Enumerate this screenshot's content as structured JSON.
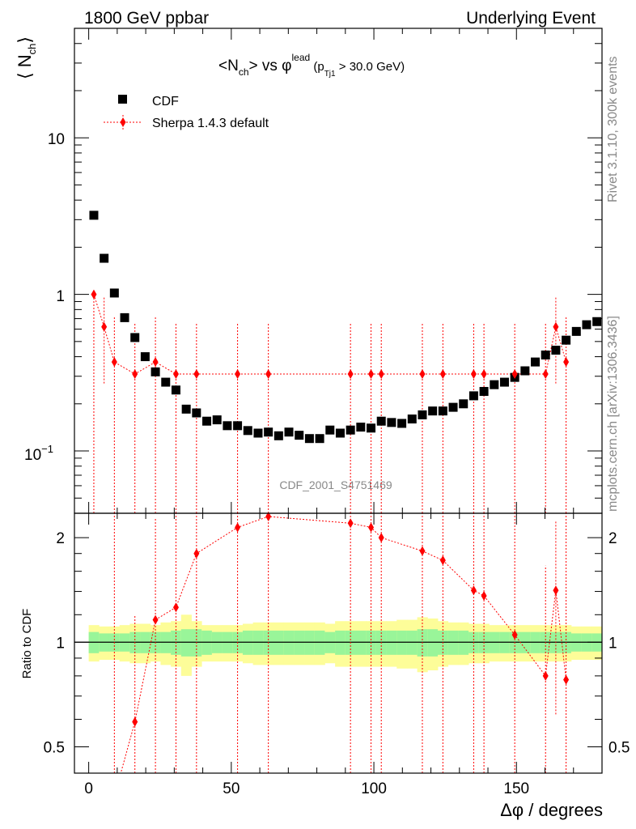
{
  "header": {
    "left": "1800 GeV ppbar",
    "right": "Underlying Event"
  },
  "side": {
    "rivet": "Rivet 3.1.10,  300k events",
    "mcplots": "mcplots.cern.ch [arXiv:1306.3436]"
  },
  "watermark": "CDF_2001_S4751469",
  "colors": {
    "data": "#000000",
    "mc": "#ff0000",
    "band_inner": "#99f599",
    "band_outer": "#fdfd99"
  },
  "chart_data": [
    {
      "type": "scatter",
      "title": "<Nch> vs φlead (pTj1 > 30.0 GeV)",
      "title_parts": {
        "a": "<N",
        "a_sub": "ch",
        "b": "> vs ",
        "phi": "φ",
        "phi_sup": "lead",
        "c": " (p",
        "c_sub": "Tj1",
        "d": " > 30.0 GeV)"
      },
      "ylabel": "⟨ N",
      "ylabel_sub": "ch",
      "ylabel_close": "⟩",
      "yscale": "log",
      "ylim": [
        0.04,
        50
      ],
      "xlim": [
        -5,
        180
      ],
      "ytick_labels": {
        "t01": "10",
        "t01_exp": "−1",
        "t1": "1",
        "t10": "10"
      },
      "legend_position": "top-left",
      "legend": {
        "data": "CDF",
        "mc": "Sherpa 1.4.3 default"
      },
      "series": [
        {
          "name": "CDF",
          "x": [
            1.8,
            5.4,
            9.0,
            12.6,
            16.2,
            19.8,
            23.4,
            27.0,
            30.6,
            34.2,
            37.8,
            41.4,
            45.0,
            48.6,
            52.2,
            55.8,
            59.4,
            63.0,
            66.6,
            70.2,
            73.8,
            77.4,
            81.0,
            84.6,
            88.2,
            91.8,
            95.4,
            99.0,
            102.6,
            106.2,
            109.8,
            113.4,
            117.0,
            120.6,
            124.2,
            127.8,
            131.4,
            135.0,
            138.6,
            142.2,
            145.8,
            149.4,
            153.0,
            156.6,
            160.2,
            163.8,
            167.4,
            171.0,
            174.6,
            178.2
          ],
          "y": [
            3.2,
            1.7,
            1.02,
            0.71,
            0.53,
            0.4,
            0.32,
            0.275,
            0.245,
            0.185,
            0.175,
            0.155,
            0.158,
            0.145,
            0.145,
            0.135,
            0.13,
            0.132,
            0.125,
            0.132,
            0.126,
            0.12,
            0.12,
            0.136,
            0.13,
            0.136,
            0.142,
            0.14,
            0.155,
            0.152,
            0.15,
            0.16,
            0.17,
            0.18,
            0.18,
            0.19,
            0.2,
            0.225,
            0.24,
            0.265,
            0.275,
            0.295,
            0.325,
            0.37,
            0.41,
            0.44,
            0.51,
            0.58,
            0.64,
            0.67
          ]
        },
        {
          "name": "Sherpa 1.4.3 default",
          "x": [
            1.8,
            5.4,
            9.0,
            16.2,
            23.4,
            30.6,
            37.8,
            52.2,
            63.0,
            91.8,
            99.0,
            102.6,
            117.0,
            124.2,
            135.0,
            138.6,
            149.4,
            160.2,
            163.8,
            167.4
          ],
          "y": [
            1.0,
            0.62,
            0.37,
            0.31,
            0.37,
            0.31,
            0.31,
            0.31,
            0.31,
            0.31,
            0.31,
            0.31,
            0.31,
            0.31,
            0.31,
            0.31,
            0.31,
            0.31,
            0.62,
            0.37
          ],
          "y_low": [
            0.04,
            0.27,
            0.04,
            0.04,
            0.04,
            0.04,
            0.04,
            0.04,
            0.04,
            0.04,
            0.04,
            0.04,
            0.04,
            0.04,
            0.04,
            0.04,
            0.04,
            0.04,
            0.27,
            0.04
          ],
          "y_high": [
            1.0,
            0.96,
            0.72,
            0.66,
            0.72,
            0.66,
            0.66,
            0.66,
            0.66,
            0.66,
            0.66,
            0.66,
            0.66,
            0.66,
            0.66,
            0.66,
            0.66,
            0.66,
            0.97,
            0.72
          ]
        }
      ]
    },
    {
      "type": "line",
      "ylabel": "Ratio to CDF",
      "xlabel": "Δφ / degrees",
      "yscale": "log",
      "ylim": [
        0.42,
        2.35
      ],
      "xlim": [
        -5,
        180
      ],
      "xticks": [
        0,
        50,
        100,
        150
      ],
      "xtick_labels": [
        "0",
        "50",
        "100",
        "150"
      ],
      "yticks": [
        0.5,
        1,
        2
      ],
      "ytick_labels": [
        "0.5",
        "1",
        "2"
      ],
      "band_edges": [
        0,
        3.6,
        7.2,
        10.8,
        14.4,
        18,
        21.6,
        25.2,
        28.8,
        32.4,
        36,
        39.6,
        43.2,
        46.8,
        50.4,
        54,
        57.6,
        61.2,
        64.8,
        68.4,
        72,
        75.6,
        79.2,
        82.8,
        86.4,
        90,
        93.6,
        97.2,
        100.8,
        104.4,
        108,
        111.6,
        115.2,
        118.8,
        122.4,
        126,
        129.6,
        133.2,
        136.8,
        140.4,
        144,
        147.6,
        151.2,
        154.8,
        158.4,
        162,
        165.6,
        169.2,
        172.8,
        176.4,
        180
      ],
      "band_inner": [
        0.07,
        0.06,
        0.06,
        0.06,
        0.07,
        0.07,
        0.07,
        0.07,
        0.08,
        0.09,
        0.09,
        0.08,
        0.07,
        0.07,
        0.07,
        0.08,
        0.08,
        0.08,
        0.08,
        0.08,
        0.08,
        0.08,
        0.08,
        0.07,
        0.08,
        0.08,
        0.08,
        0.08,
        0.08,
        0.08,
        0.08,
        0.08,
        0.09,
        0.09,
        0.08,
        0.08,
        0.08,
        0.07,
        0.07,
        0.07,
        0.07,
        0.07,
        0.07,
        0.07,
        0.07,
        0.07,
        0.07,
        0.06,
        0.06,
        0.06
      ],
      "band_outer": [
        0.12,
        0.11,
        0.11,
        0.12,
        0.13,
        0.13,
        0.12,
        0.14,
        0.15,
        0.2,
        0.15,
        0.12,
        0.12,
        0.12,
        0.12,
        0.13,
        0.14,
        0.14,
        0.14,
        0.14,
        0.14,
        0.14,
        0.14,
        0.13,
        0.15,
        0.15,
        0.15,
        0.15,
        0.15,
        0.15,
        0.16,
        0.16,
        0.18,
        0.17,
        0.15,
        0.14,
        0.14,
        0.13,
        0.13,
        0.12,
        0.12,
        0.12,
        0.12,
        0.12,
        0.12,
        0.12,
        0.12,
        0.11,
        0.11,
        0.11
      ],
      "series": [
        {
          "name": "Sherpa 1.4.3 default",
          "x": [
            9.0,
            16.2,
            23.4,
            30.6,
            37.8,
            52.2,
            63.0,
            91.8,
            99.0,
            102.6,
            117.0,
            124.2,
            135.0,
            138.6,
            149.4,
            160.2,
            163.8,
            167.4
          ],
          "y": [
            0.36,
            0.59,
            1.16,
            1.26,
            1.8,
            2.14,
            2.3,
            2.2,
            2.14,
            2.0,
            1.83,
            1.72,
            1.41,
            1.36,
            1.05,
            0.8,
            1.41,
            0.78
          ],
          "y_low": [
            0.42,
            0.42,
            0.42,
            0.42,
            0.42,
            0.42,
            0.42,
            0.42,
            0.42,
            0.42,
            0.42,
            0.42,
            0.42,
            0.42,
            0.42,
            0.42,
            0.62,
            0.42
          ],
          "y_high": [
            2.35,
            1.2,
            2.27,
            2.35,
            2.35,
            2.35,
            2.35,
            2.35,
            2.35,
            2.35,
            2.35,
            2.35,
            2.35,
            2.35,
            2.35,
            1.66,
            2.23,
            2.35
          ]
        }
      ]
    }
  ]
}
